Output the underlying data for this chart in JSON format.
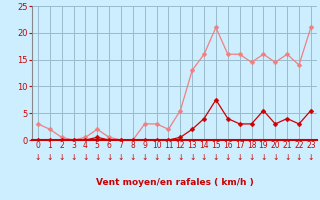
{
  "x": [
    0,
    1,
    2,
    3,
    4,
    5,
    6,
    7,
    8,
    9,
    10,
    11,
    12,
    13,
    14,
    15,
    16,
    17,
    18,
    19,
    20,
    21,
    22,
    23
  ],
  "rafales": [
    3.0,
    2.0,
    0.5,
    0.0,
    0.5,
    2.0,
    0.5,
    0.0,
    0.0,
    3.0,
    3.0,
    2.0,
    5.5,
    13.0,
    16.0,
    21.0,
    16.0,
    16.0,
    14.5,
    16.0,
    14.5,
    16.0,
    14.0,
    21.0
  ],
  "moyen": [
    0.0,
    0.0,
    0.0,
    0.0,
    0.0,
    0.5,
    0.0,
    0.0,
    0.0,
    0.0,
    0.0,
    0.0,
    0.5,
    2.0,
    4.0,
    7.5,
    4.0,
    3.0,
    3.0,
    5.5,
    3.0,
    4.0,
    3.0,
    5.5
  ],
  "color_rafales": "#f08080",
  "color_moyen": "#cc0000",
  "bg_color": "#cceeff",
  "grid_color": "#99bbcc",
  "axis_color": "#cc0000",
  "xlabel": "Vent moyen/en rafales ( km/h )",
  "ylim": [
    0,
    25
  ],
  "xlim": [
    -0.5,
    23.5
  ],
  "yticks": [
    0,
    5,
    10,
    15,
    20,
    25
  ],
  "xticks": [
    0,
    1,
    2,
    3,
    4,
    5,
    6,
    7,
    8,
    9,
    10,
    11,
    12,
    13,
    14,
    15,
    16,
    17,
    18,
    19,
    20,
    21,
    22,
    23
  ],
  "ytick_fontsize": 6,
  "xtick_fontsize": 5.5,
  "xlabel_fontsize": 6.5,
  "marker_size": 2.5
}
